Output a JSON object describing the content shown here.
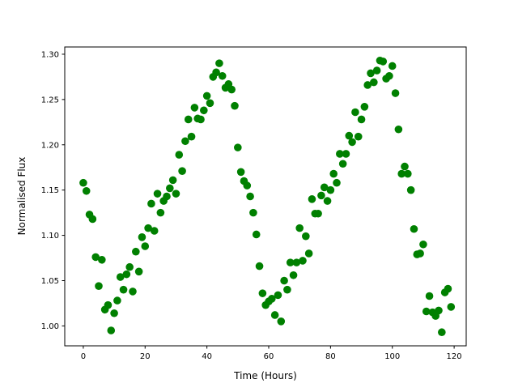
{
  "chart_data": {
    "type": "scatter",
    "title": "",
    "xlabel": "Time (Hours)",
    "ylabel": "Normalised Flux",
    "xlim": [
      -6.0,
      123.9
    ],
    "ylim": [
      0.978,
      1.308
    ],
    "xticks": [
      0,
      20,
      40,
      60,
      80,
      100,
      120
    ],
    "xtick_labels": [
      "0",
      "20",
      "40",
      "60",
      "80",
      "100",
      "120"
    ],
    "yticks": [
      1.0,
      1.05,
      1.1,
      1.15,
      1.2,
      1.25,
      1.3
    ],
    "ytick_labels": [
      "1.00",
      "1.05",
      "1.10",
      "1.15",
      "1.20",
      "1.25",
      "1.30"
    ],
    "grid": false,
    "marker_color": "#008000",
    "series": [
      {
        "x": [
          0,
          1,
          2,
          3,
          4,
          5,
          6,
          7,
          8,
          9,
          10,
          11,
          12,
          13,
          14,
          15,
          16,
          17,
          18,
          19,
          20,
          21,
          22,
          23,
          24,
          25,
          26,
          27,
          28,
          29,
          30,
          31,
          32,
          33,
          34,
          35,
          36,
          37,
          38,
          39,
          40,
          41,
          42,
          43,
          44,
          45,
          46,
          47,
          48,
          49,
          50,
          51,
          52,
          53,
          54,
          55,
          56,
          57,
          58,
          59,
          60,
          61,
          62,
          63,
          64,
          65,
          66,
          67,
          68,
          69,
          70,
          71,
          72,
          73,
          74,
          75,
          76,
          77,
          78,
          79,
          80,
          81,
          82,
          83,
          84,
          85,
          86,
          87,
          88,
          89,
          90,
          91,
          92,
          93,
          94,
          95,
          96,
          97,
          98,
          99,
          100,
          101,
          102,
          103,
          104,
          105,
          106,
          107,
          108,
          109,
          110,
          111,
          112,
          113,
          114,
          115,
          116,
          117,
          118,
          119
        ],
        "y": [
          1.158,
          1.149,
          1.123,
          1.118,
          1.076,
          1.044,
          1.073,
          1.018,
          1.023,
          0.995,
          1.014,
          1.028,
          1.054,
          1.04,
          1.057,
          1.065,
          1.038,
          1.082,
          1.06,
          1.098,
          1.088,
          1.108,
          1.135,
          1.105,
          1.146,
          1.125,
          1.138,
          1.143,
          1.152,
          1.161,
          1.146,
          1.189,
          1.171,
          1.204,
          1.228,
          1.209,
          1.241,
          1.229,
          1.228,
          1.238,
          1.254,
          1.246,
          1.275,
          1.28,
          1.29,
          1.276,
          1.263,
          1.267,
          1.261,
          1.243,
          1.197,
          1.17,
          1.16,
          1.155,
          1.143,
          1.125,
          1.101,
          1.066,
          1.036,
          1.023,
          1.027,
          1.03,
          1.012,
          1.034,
          1.005,
          1.05,
          1.04,
          1.07,
          1.056,
          1.07,
          1.108,
          1.072,
          1.099,
          1.08,
          1.14,
          1.124,
          1.124,
          1.144,
          1.153,
          1.138,
          1.15,
          1.168,
          1.158,
          1.19,
          1.179,
          1.19,
          1.21,
          1.203,
          1.236,
          1.209,
          1.228,
          1.242,
          1.266,
          1.279,
          1.269,
          1.282,
          1.293,
          1.292,
          1.273,
          1.276,
          1.287,
          1.257,
          1.217,
          1.168,
          1.176,
          1.168,
          1.15,
          1.107,
          1.079,
          1.08,
          1.09,
          1.016,
          1.033,
          1.015,
          1.011,
          1.017,
          0.993,
          1.037,
          1.041,
          1.021
        ]
      }
    ]
  }
}
